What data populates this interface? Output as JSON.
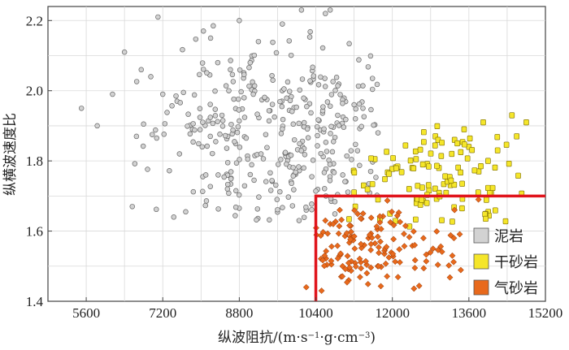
{
  "chart_data": {
    "type": "scatter",
    "title": "",
    "xlabel_prefix": "纵波阻抗/(m·s",
    "xlabel_sup1": "−1",
    "xlabel_mid": "·g·cm",
    "xlabel_sup2": "−3",
    "xlabel_suffix": ")",
    "ylabel": "纵横波速度比",
    "xlim": [
      4800,
      15200
    ],
    "ylim": [
      1.4,
      2.24
    ],
    "x_ticks": [
      5600,
      7200,
      8800,
      10400,
      12000,
      13600,
      15200
    ],
    "y_ticks": [
      1.4,
      1.6,
      1.8,
      2.0,
      2.2
    ],
    "y_tick_labels": [
      "1.4",
      "1.6",
      "1.8",
      "2.0",
      "2.2"
    ],
    "grid": true,
    "legend_position": "bottom-right",
    "cutoff_lines": {
      "impedance": 10400,
      "vp_vs": 1.7,
      "color": "#e0141c"
    },
    "series": [
      {
        "name": "泥岩",
        "color": "#d2d2d2",
        "edge": "#666666",
        "cluster": {
          "n": 380,
          "x_range": [
            5500,
            11700
          ],
          "y_range": [
            1.63,
            2.24
          ],
          "center": [
            9900,
            1.86
          ]
        },
        "points": [
          [
            5500,
            1.95
          ],
          [
            5830,
            1.9
          ],
          [
            6150,
            1.99
          ],
          [
            6400,
            2.11
          ],
          [
            6650,
            1.87
          ],
          [
            6750,
            2.06
          ],
          [
            6950,
            2.04
          ],
          [
            7100,
            2.21
          ],
          [
            7200,
            1.99
          ],
          [
            7500,
            1.97
          ],
          [
            7550,
            1.82
          ],
          [
            8050,
            2.17
          ],
          [
            8200,
            2.15
          ],
          [
            8350,
            2.08
          ],
          [
            8800,
            2.2
          ],
          [
            8900,
            1.98
          ],
          [
            9200,
            2.14
          ],
          [
            9700,
            2.19
          ],
          [
            10100,
            2.23
          ],
          [
            10600,
            2.22
          ],
          [
            10700,
            2.23
          ],
          [
            10050,
            1.63
          ],
          [
            10200,
            1.66
          ],
          [
            11200,
            1.96
          ],
          [
            11700,
            1.88
          ]
        ]
      },
      {
        "name": "干砂岩",
        "color": "#f5e62a",
        "edge": "#7a6a00",
        "cluster": {
          "n": 120,
          "x_range": [
            11000,
            14900
          ],
          "y_range": [
            1.6,
            1.93
          ],
          "center": [
            13000,
            1.75
          ]
        },
        "points": [
          [
            14800,
            1.91
          ],
          [
            14500,
            1.93
          ],
          [
            14600,
            1.87
          ],
          [
            14200,
            1.83
          ],
          [
            14000,
            1.8
          ],
          [
            13900,
            1.91
          ],
          [
            13500,
            1.89
          ],
          [
            13600,
            1.84
          ],
          [
            13300,
            1.86
          ],
          [
            12900,
            1.87
          ],
          [
            11200,
            1.71
          ],
          [
            11400,
            1.73
          ],
          [
            11700,
            1.69
          ],
          [
            11950,
            1.65
          ],
          [
            12350,
            1.72
          ]
        ]
      },
      {
        "name": "气砂岩",
        "color": "#e8691c",
        "edge": "#8a3000",
        "cluster": {
          "n": 150,
          "x_range": [
            10400,
            13900
          ],
          "y_range": [
            1.43,
            1.69
          ],
          "center": [
            11700,
            1.55
          ]
        },
        "points": [
          [
            10200,
            1.44
          ],
          [
            10520,
            1.43
          ],
          [
            10600,
            1.63
          ],
          [
            10700,
            1.62
          ],
          [
            11500,
            1.58
          ],
          [
            12650,
            1.58
          ],
          [
            12850,
            1.55
          ],
          [
            13800,
            1.69
          ],
          [
            13300,
            1.66
          ],
          [
            10900,
            1.66
          ]
        ]
      }
    ]
  }
}
